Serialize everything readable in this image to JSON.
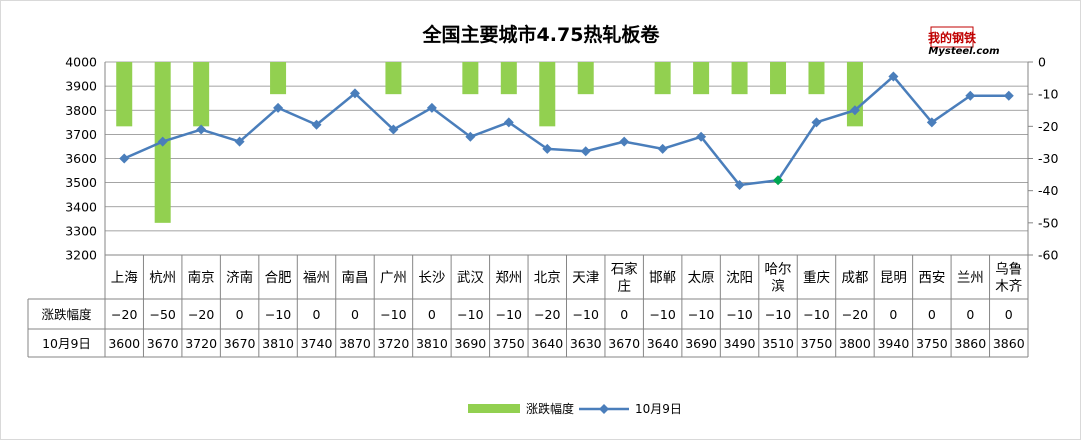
{
  "chart_data": {
    "type": "bar",
    "title": "全国主要城市4.75热轧板卷",
    "categories": [
      [
        "上海"
      ],
      [
        "杭州"
      ],
      [
        "南京"
      ],
      [
        "济南"
      ],
      [
        "合肥"
      ],
      [
        "福州"
      ],
      [
        "南昌"
      ],
      [
        "广州"
      ],
      [
        "长沙"
      ],
      [
        "武汉"
      ],
      [
        "郑州"
      ],
      [
        "北京"
      ],
      [
        "天津"
      ],
      [
        "石家",
        "庄"
      ],
      [
        "邯郸"
      ],
      [
        "太原"
      ],
      [
        "沈阳"
      ],
      [
        "哈尔",
        "滨"
      ],
      [
        "重庆"
      ],
      [
        "成都"
      ],
      [
        "昆明"
      ],
      [
        "西安"
      ],
      [
        "兰州"
      ],
      [
        "乌鲁",
        "木齐"
      ]
    ],
    "series": [
      {
        "name": "涨跌幅度",
        "type": "bar",
        "axis": "right",
        "color": "#92d050",
        "values": [
          -20,
          -50,
          -20,
          0,
          -10,
          0,
          0,
          -10,
          0,
          -10,
          -10,
          -20,
          -10,
          0,
          -10,
          -10,
          -10,
          -10,
          -10,
          -20,
          0,
          0,
          0,
          0
        ]
      },
      {
        "name": "10月9日",
        "type": "line",
        "axis": "left",
        "color": "#4a7ebb",
        "marker_color": "#4a7ebb",
        "highlight_index": 17,
        "highlight_color": "#00a651",
        "values": [
          3600,
          3670,
          3720,
          3670,
          3810,
          3740,
          3870,
          3720,
          3810,
          3690,
          3750,
          3640,
          3630,
          3670,
          3640,
          3690,
          3490,
          3510,
          3750,
          3800,
          3940,
          3750,
          3860,
          3860
        ]
      }
    ],
    "left_axis": {
      "min": 3200,
      "max": 4000,
      "step": 100,
      "ticks": [
        "4000",
        "3900",
        "3800",
        "3700",
        "3600",
        "3500",
        "3400",
        "3300",
        "3200"
      ]
    },
    "right_axis": {
      "min": -60,
      "max": 0,
      "step": 10,
      "ticks": [
        "0",
        "-10",
        "-20",
        "-30",
        "-40",
        "-50",
        "-60"
      ]
    },
    "table_rows": [
      {
        "label": "涨跌幅度",
        "cells": [
          "−20",
          "−50",
          "−20",
          "0",
          "−10",
          "0",
          "0",
          "−10",
          "0",
          "−10",
          "−10",
          "−20",
          "−10",
          "0",
          "−10",
          "−10",
          "−10",
          "−10",
          "−10",
          "−20",
          "0",
          "0",
          "0",
          "0"
        ]
      },
      {
        "label": "10月9日",
        "cells": [
          "3600",
          "3670",
          "3720",
          "3670",
          "3810",
          "3740",
          "3870",
          "3720",
          "3810",
          "3690",
          "3750",
          "3640",
          "3630",
          "3670",
          "3640",
          "3690",
          "3490",
          "3510",
          "3750",
          "3800",
          "3940",
          "3750",
          "3860",
          "3860"
        ]
      }
    ],
    "legend": [
      "涨跌幅度",
      "10月9日"
    ],
    "legend_position": "bottom",
    "grid": true
  },
  "logo": {
    "top_text": "我的钢铁",
    "bottom_text": "Mysteel.com",
    "color": "#c00000"
  }
}
